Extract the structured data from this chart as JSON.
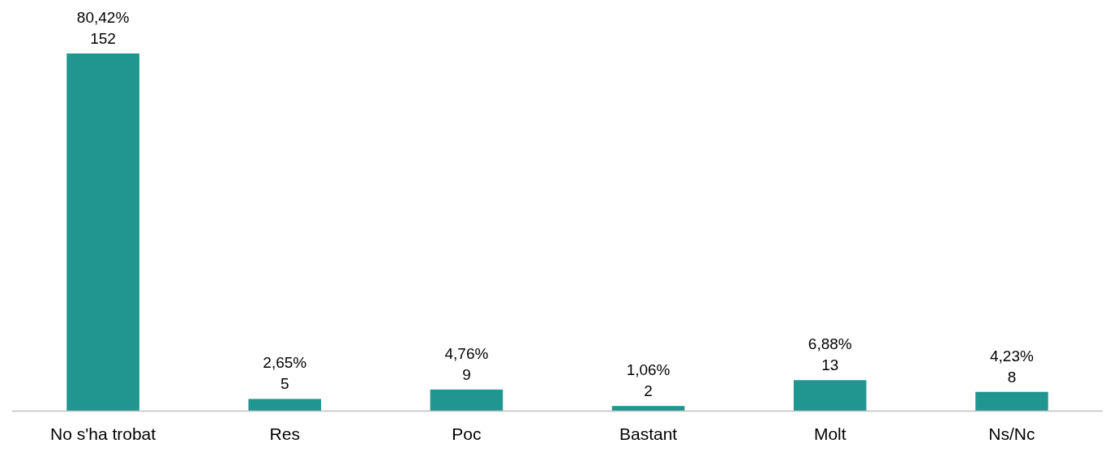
{
  "chart_data": {
    "type": "bar",
    "categories": [
      "No s'ha trobat",
      "Res",
      "Poc",
      "Bastant",
      "Molt",
      "Ns/Nc"
    ],
    "values": [
      152,
      5,
      9,
      2,
      13,
      8
    ],
    "color": "#209690",
    "value_labels": [
      "80,42%\n152",
      "2,65%\n5",
      "4,76%\n9",
      "1,06%\n2",
      "6,88%\n13",
      "4,23%\n8"
    ]
  }
}
